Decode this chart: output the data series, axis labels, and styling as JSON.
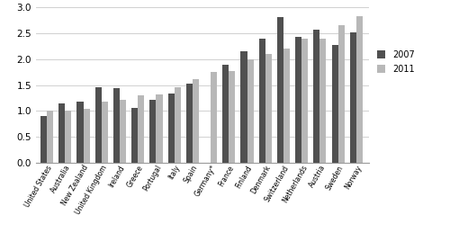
{
  "categories": [
    "United States",
    "Australia",
    "New Zealand",
    "United Kingdom",
    "Ireland",
    "Greece",
    "Portugal",
    "Italy",
    "Spain",
    "Germany*",
    "France",
    "Finland",
    "Denmark",
    "Switzerland",
    "Netherlands",
    "Austria",
    "Sweden",
    "Norway"
  ],
  "values_2007": [
    0.9,
    1.15,
    1.17,
    1.46,
    1.44,
    1.05,
    1.22,
    1.33,
    1.53,
    null,
    1.9,
    2.15,
    2.39,
    2.82,
    2.43,
    2.57,
    2.28,
    2.52
  ],
  "values_2011": [
    1.0,
    1.0,
    1.04,
    1.17,
    1.22,
    1.3,
    1.32,
    1.45,
    1.62,
    1.75,
    1.77,
    2.0,
    2.1,
    2.2,
    2.4,
    2.4,
    2.65,
    2.83
  ],
  "color_2007": "#505050",
  "color_2011": "#b8b8b8",
  "legend_2007": "2007",
  "legend_2011": "2011",
  "ylim": [
    0,
    3
  ],
  "yticks": [
    0,
    0.5,
    1.0,
    1.5,
    2.0,
    2.5,
    3.0
  ],
  "bar_width": 0.35,
  "figsize": [
    5.0,
    2.78
  ],
  "dpi": 100
}
